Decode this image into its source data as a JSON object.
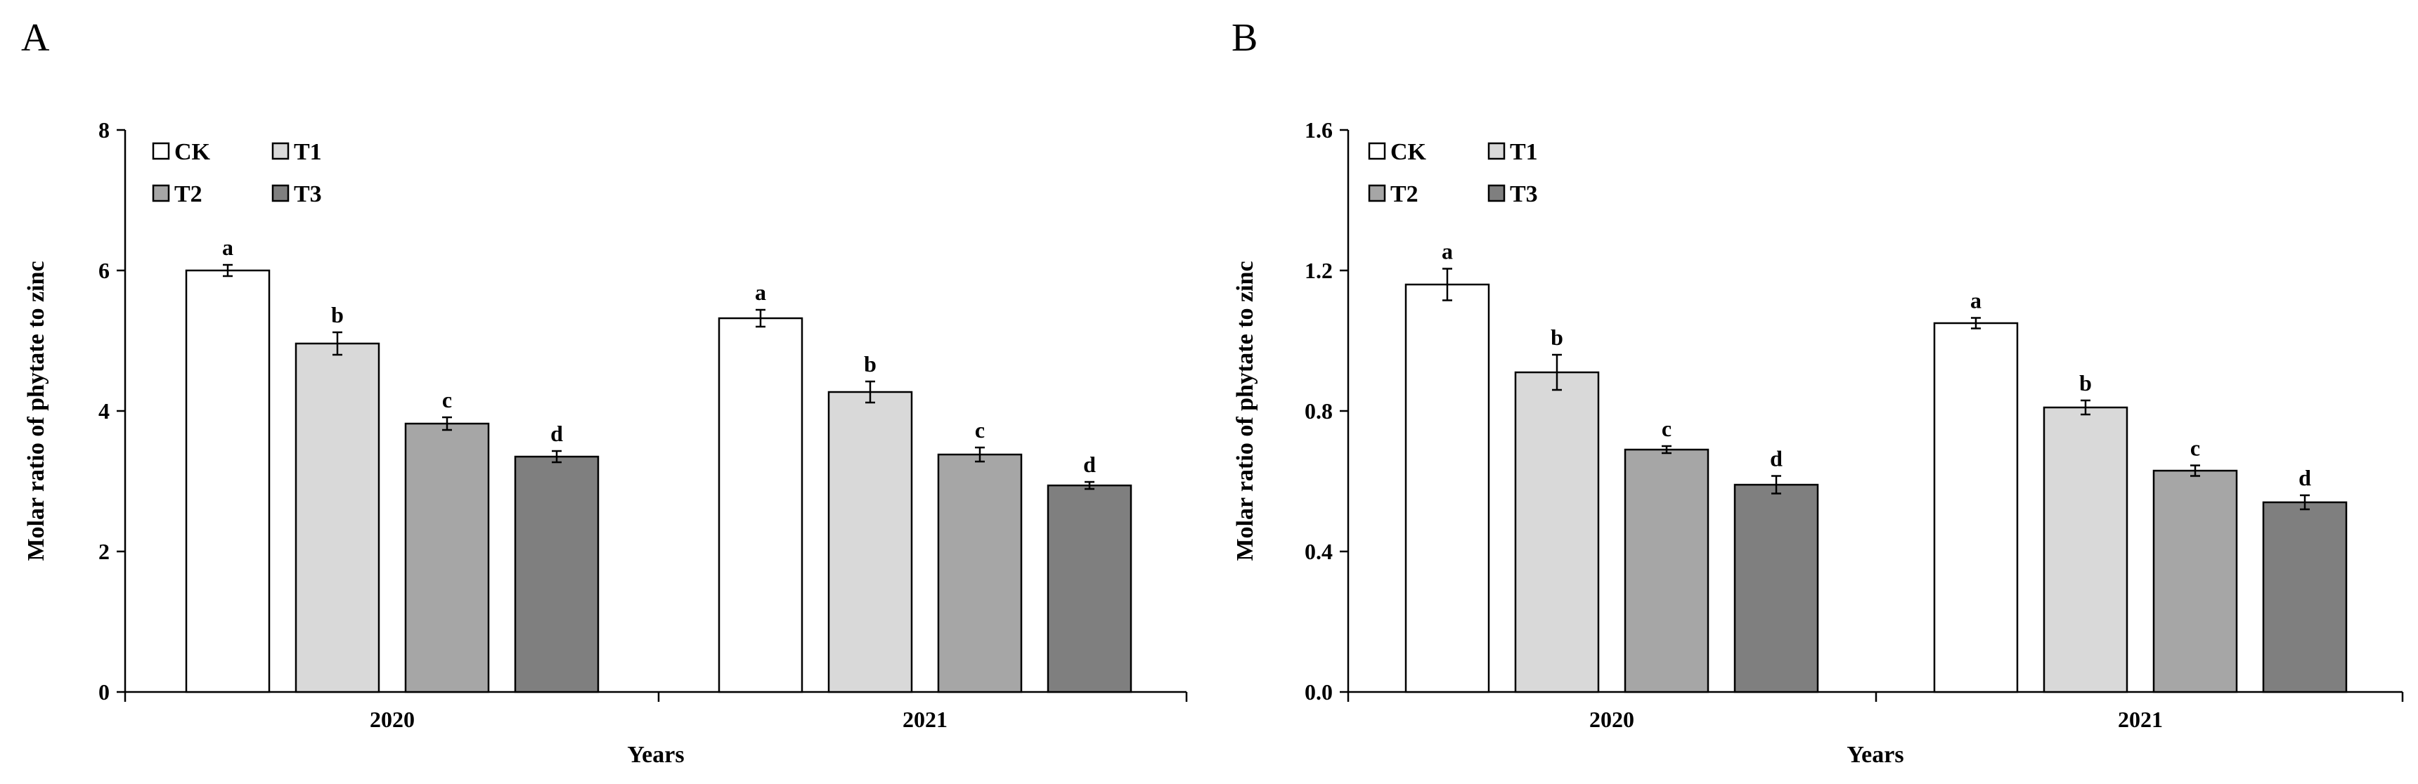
{
  "chart_data": [
    {
      "type": "bar",
      "panel": "A",
      "title": "",
      "xlabel": "Years",
      "ylabel": "Molar ratio of phytate to zinc",
      "ylim": [
        0,
        8
      ],
      "yticks": [
        "0",
        "2",
        "4",
        "6",
        "8"
      ],
      "categories": [
        "2020",
        "2021"
      ],
      "legend": [
        "CK",
        "T1",
        "T2",
        "T3"
      ],
      "series": [
        {
          "name": "CK",
          "color": "#ffffff",
          "values": [
            6.0,
            5.32
          ],
          "errors": [
            0.08,
            0.12
          ],
          "letters": [
            "a",
            "a"
          ]
        },
        {
          "name": "T1",
          "color": "#d9d9d9",
          "values": [
            4.96,
            4.27
          ],
          "errors": [
            0.16,
            0.15
          ],
          "letters": [
            "b",
            "b"
          ]
        },
        {
          "name": "T2",
          "color": "#a6a6a6",
          "values": [
            3.82,
            3.38
          ],
          "errors": [
            0.09,
            0.1
          ],
          "letters": [
            "c",
            "c"
          ]
        },
        {
          "name": "T3",
          "color": "#7f7f7f",
          "values": [
            3.35,
            2.94
          ],
          "errors": [
            0.08,
            0.05
          ],
          "letters": [
            "d",
            "d"
          ]
        }
      ]
    },
    {
      "type": "bar",
      "panel": "B",
      "title": "",
      "xlabel": "Years",
      "ylabel": "Molar ratio of phytate to zinc",
      "ylim": [
        0,
        1.6
      ],
      "yticks": [
        "0.0",
        "0.4",
        "0.8",
        "1.2",
        "1.6"
      ],
      "categories": [
        "2020",
        "2021"
      ],
      "legend": [
        "CK",
        "T1",
        "T2",
        "T3"
      ],
      "series": [
        {
          "name": "CK",
          "color": "#ffffff",
          "values": [
            1.16,
            1.05
          ],
          "errors": [
            0.045,
            0.015
          ],
          "letters": [
            "a",
            "a"
          ]
        },
        {
          "name": "T1",
          "color": "#d9d9d9",
          "values": [
            0.91,
            0.81
          ],
          "errors": [
            0.05,
            0.02
          ],
          "letters": [
            "b",
            "b"
          ]
        },
        {
          "name": "T2",
          "color": "#a6a6a6",
          "values": [
            0.69,
            0.63
          ],
          "errors": [
            0.01,
            0.015
          ],
          "letters": [
            "c",
            "c"
          ]
        },
        {
          "name": "T3",
          "color": "#7f7f7f",
          "values": [
            0.59,
            0.54
          ],
          "errors": [
            0.025,
            0.02
          ],
          "letters": [
            "d",
            "d"
          ]
        }
      ]
    }
  ]
}
